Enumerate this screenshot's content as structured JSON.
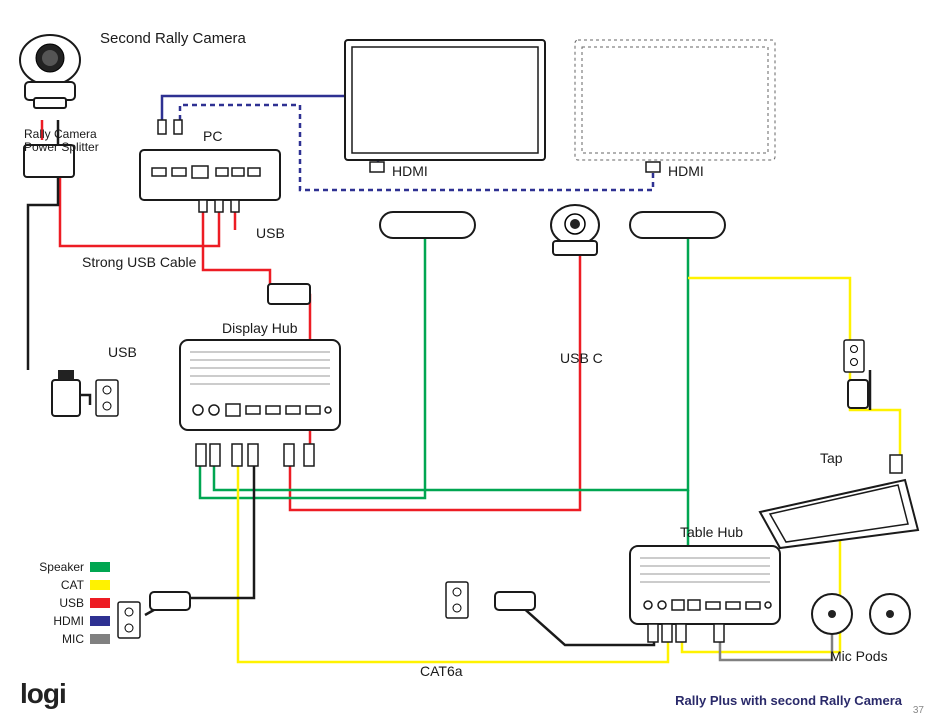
{
  "title": "Rally Plus with second Rally Camera",
  "page_number": "37",
  "brand": "logi",
  "colors": {
    "speaker": "#00a651",
    "cat": "#fff200",
    "usb": "#ed1c24",
    "hdmi": "#2e3192",
    "mic": "#808080"
  },
  "labels": {
    "second_camera": "Second Rally Camera",
    "splitter": "Rally Camera\nPower Splitter",
    "pc": "PC",
    "hdmi1": "HDMI",
    "hdmi2": "HDMI",
    "usb": "USB",
    "strong_usb": "Strong USB Cable",
    "usb_side": "USB",
    "display_hub": "Display Hub",
    "usb_c": "USB C",
    "tap": "Tap",
    "table_hub": "Table Hub",
    "cat6a": "CAT6a",
    "mic_pods": "Mic Pods"
  },
  "legend": [
    {
      "name": "Speaker",
      "color_key": "speaker"
    },
    {
      "name": "CAT",
      "color_key": "cat"
    },
    {
      "name": "USB",
      "color_key": "usb"
    },
    {
      "name": "HDMI",
      "color_key": "hdmi"
    },
    {
      "name": "MIC",
      "color_key": "mic"
    }
  ]
}
